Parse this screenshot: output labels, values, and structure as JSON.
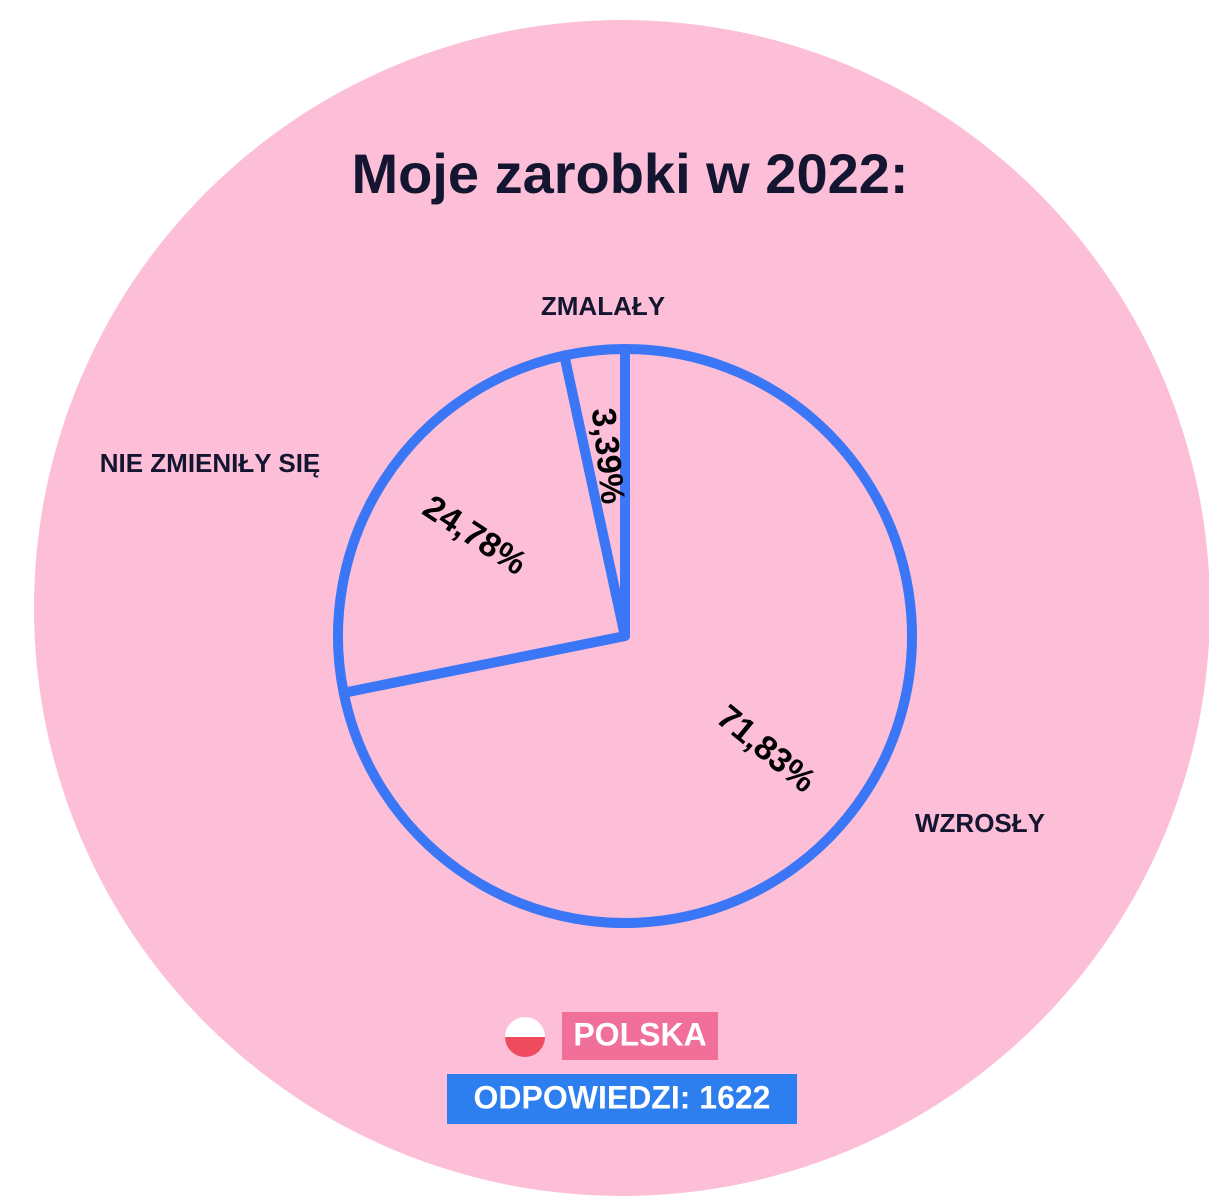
{
  "chart_data": {
    "type": "pie",
    "title": "Moje zarobki w 2022:",
    "categories": [
      "WZROSŁY",
      "NIE ZMIENIŁY SIĘ",
      "ZMALAŁY"
    ],
    "values": [
      71.83,
      24.78,
      3.39
    ],
    "value_labels": [
      "71,83%",
      "24,78%",
      "3,39%"
    ],
    "color": "#3b76f6",
    "country": "POLSKA",
    "responses": "ODPOWIEDZI: 1622"
  }
}
